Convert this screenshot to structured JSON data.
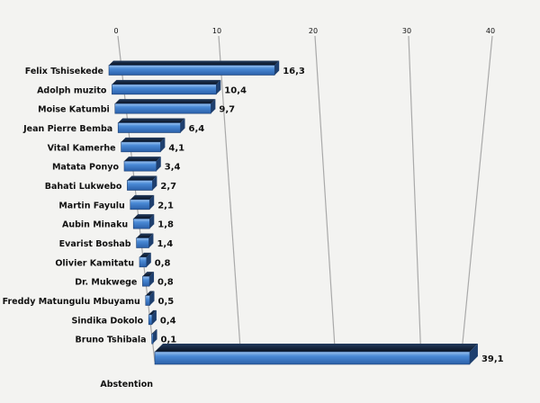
{
  "chart_data": {
    "type": "bar",
    "orientation": "horizontal",
    "style": "3d-perspective",
    "title": "",
    "xlabel": "",
    "ylabel": "",
    "xlim": [
      0,
      40
    ],
    "ticks": [
      "0",
      "10",
      "20",
      "30",
      "40"
    ],
    "grid": true,
    "categories": [
      "Felix Tshisekede",
      "Adolph muzito",
      "Moise Katumbi",
      "Jean Pierre Bemba",
      "Vital Kamerhe",
      "Matata Ponyo",
      "Bahati Lukwebo",
      "Martin Fayulu",
      "Aubin Minaku",
      "Evarist Boshab",
      "Olivier Kamitatu",
      "Dr. Mukwege",
      "Freddy Matungulu Mbuyamu",
      "Sindika Dokolo",
      "Bruno Tshibala",
      "Abstention"
    ],
    "values": [
      16.3,
      10.4,
      9.7,
      6.4,
      4.1,
      3.4,
      2.7,
      2.1,
      1.8,
      1.4,
      0.8,
      0.8,
      0.5,
      0.4,
      0.1,
      39.1
    ],
    "value_labels": [
      "16,3",
      "10,4",
      "9,7",
      "6,4",
      "4,1",
      "3,4",
      "2,7",
      "2,1",
      "1,8",
      "1,4",
      "0,8",
      "0,8",
      "0,5",
      "0,4",
      "0,1",
      "39,1"
    ],
    "colors": {
      "bar_front": "#3b78c6",
      "bar_highlight": "#9cc3f0",
      "bar_top": "#0c1626",
      "bar_side": "#1e3f6e",
      "grid": "#a9a9a9",
      "text": "#111111"
    }
  }
}
